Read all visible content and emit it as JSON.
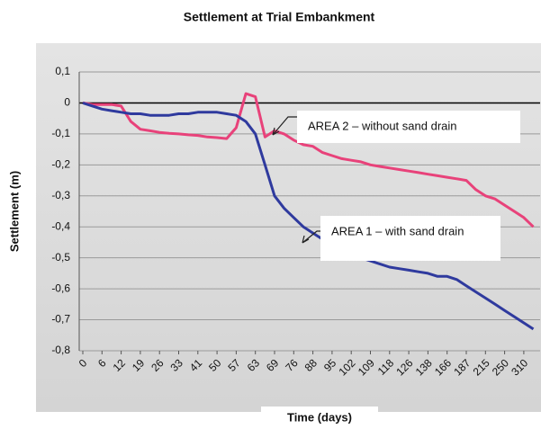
{
  "chart_data": {
    "type": "line",
    "title": "Settlement at Trial Embankment",
    "x_label": "Time (days)",
    "y_label": "Settlement (m)",
    "categories": [
      "0",
      null,
      "6",
      null,
      "12",
      null,
      "19",
      null,
      "26",
      null,
      "33",
      null,
      "41",
      null,
      "50",
      null,
      "57",
      null,
      "63",
      null,
      "69",
      null,
      "76",
      null,
      "88",
      null,
      "95",
      null,
      "102",
      null,
      "109",
      null,
      "118",
      null,
      "126",
      null,
      "138",
      null,
      "166",
      null,
      "187",
      null,
      "215",
      null,
      "250",
      null,
      "310",
      null
    ],
    "series": [
      {
        "name": "AREA 2 – without sand drain",
        "color": "#e8427a",
        "values": [
          0,
          -0.005,
          -0.005,
          -0.005,
          -0.01,
          -0.06,
          -0.085,
          -0.09,
          -0.095,
          -0.098,
          -0.1,
          -0.103,
          -0.105,
          -0.11,
          -0.112,
          -0.115,
          -0.08,
          0.03,
          0.02,
          -0.11,
          -0.09,
          -0.1,
          -0.12,
          -0.135,
          -0.14,
          -0.16,
          -0.17,
          -0.18,
          -0.185,
          -0.19,
          -0.2,
          -0.205,
          -0.21,
          -0.215,
          -0.22,
          -0.225,
          -0.23,
          -0.235,
          -0.24,
          -0.245,
          -0.25,
          -0.28,
          -0.3,
          -0.31,
          -0.33,
          -0.35,
          -0.37,
          -0.4
        ]
      },
      {
        "name": "AREA 1 – with sand drain",
        "color": "#2f3a9e",
        "values": [
          0,
          -0.01,
          -0.02,
          -0.025,
          -0.03,
          -0.035,
          -0.035,
          -0.04,
          -0.04,
          -0.04,
          -0.035,
          -0.035,
          -0.03,
          -0.03,
          -0.03,
          -0.035,
          -0.04,
          -0.06,
          -0.1,
          -0.2,
          -0.3,
          -0.34,
          -0.37,
          -0.4,
          -0.42,
          -0.44,
          -0.47,
          -0.48,
          -0.49,
          -0.5,
          -0.51,
          -0.52,
          -0.53,
          -0.535,
          -0.54,
          -0.545,
          -0.55,
          -0.56,
          -0.56,
          -0.57,
          -0.59,
          -0.61,
          -0.63,
          -0.65,
          -0.67,
          -0.69,
          -0.71,
          -0.73
        ]
      }
    ],
    "ylim": [
      -0.8,
      0.1
    ],
    "yticks": [
      {
        "value": 0.1,
        "label": "0,1"
      },
      0,
      {
        "value": -0.1,
        "label": "-0,1"
      },
      {
        "value": -0.2,
        "label": "-0,2"
      },
      {
        "value": -0.3,
        "label": "-0,3"
      },
      {
        "value": -0.4,
        "label": "-0,4"
      },
      {
        "value": -0.5,
        "label": "-0,5"
      },
      {
        "value": -0.6,
        "label": "-0,6"
      },
      {
        "value": -0.7,
        "label": "-0,7"
      },
      {
        "value": -0.8,
        "label": "-0,8"
      }
    ],
    "grid": true
  }
}
